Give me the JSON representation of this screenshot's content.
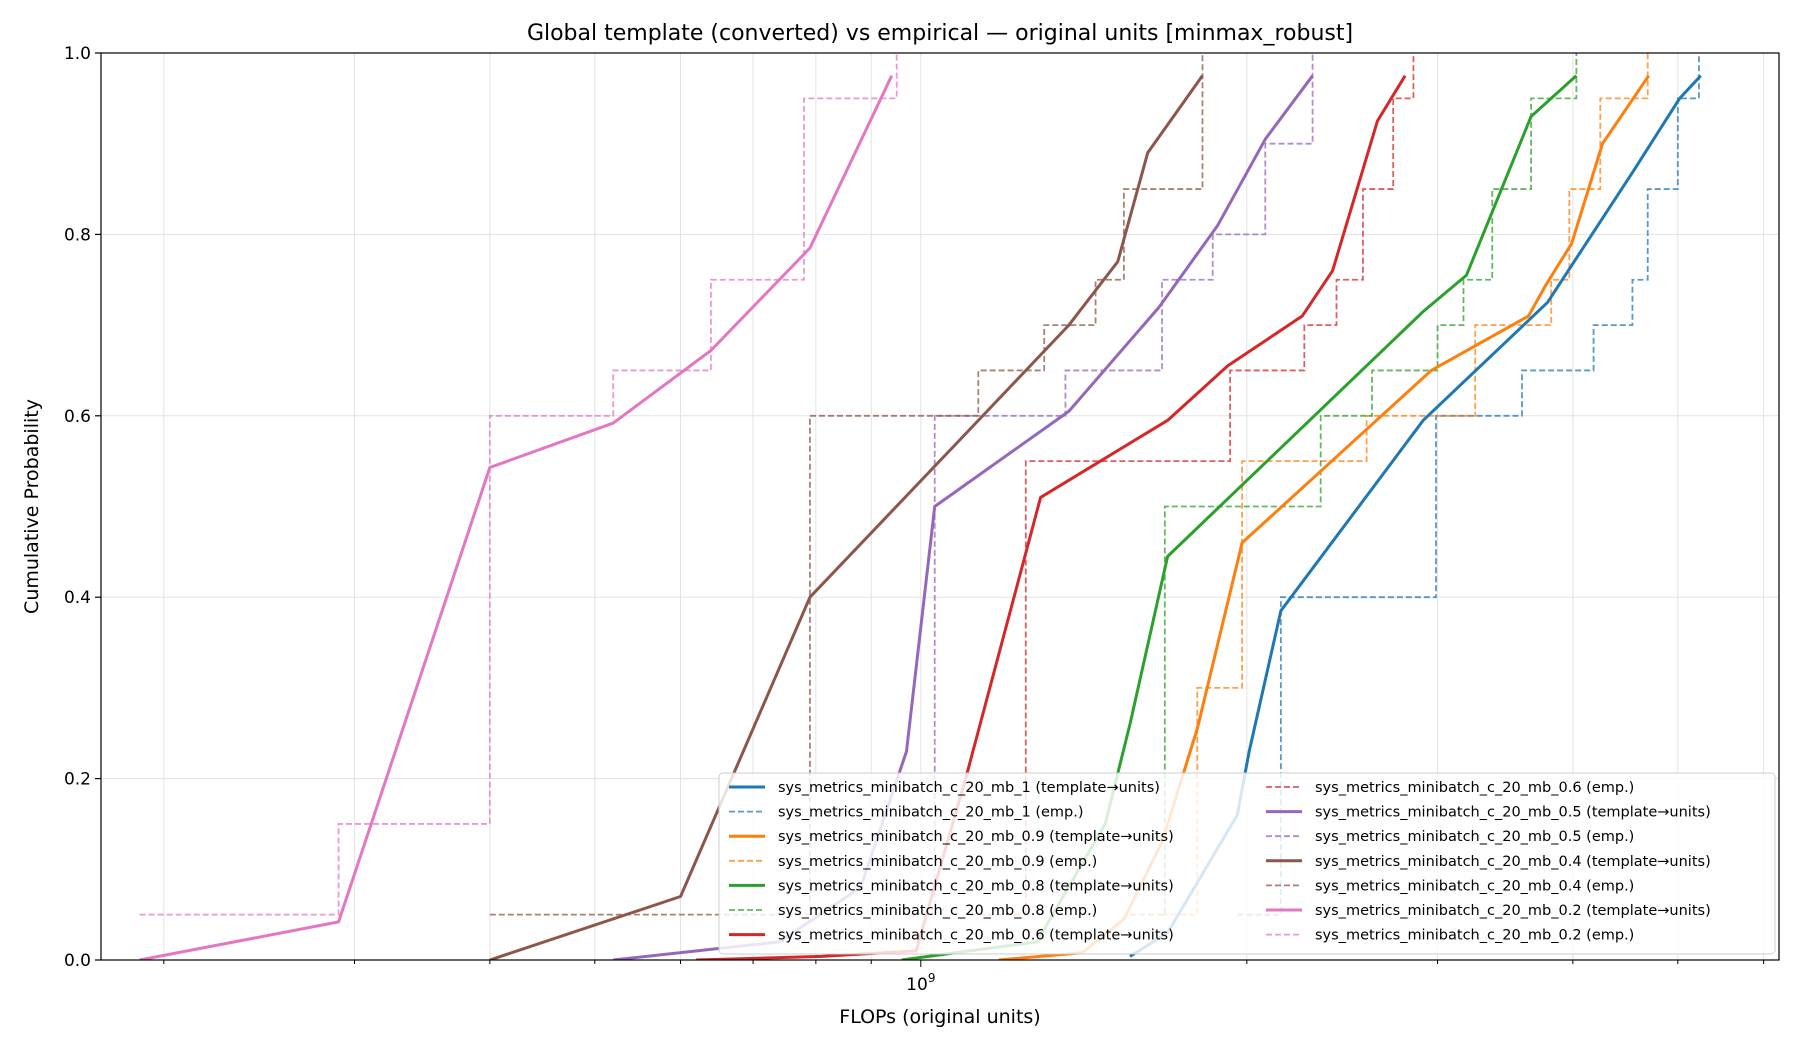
{
  "chart_data": {
    "type": "line",
    "title": "Global template (converted) vs empirical — original units [minmax_robust]",
    "xlabel": "FLOPs (original units)",
    "ylabel": "Cumulative Probability",
    "x_scale": "log",
    "xlim": [
      175000000,
      6200000000
    ],
    "ylim": [
      0,
      1
    ],
    "x_ticks": [
      {
        "value": 1000000000,
        "label": "10^9"
      }
    ],
    "y_ticks": [
      {
        "value": 0.0,
        "label": "0.0"
      },
      {
        "value": 0.2,
        "label": "0.2"
      },
      {
        "value": 0.4,
        "label": "0.4"
      },
      {
        "value": 0.6,
        "label": "0.6"
      },
      {
        "value": 0.8,
        "label": "0.8"
      },
      {
        "value": 1.0,
        "label": "1.0"
      }
    ],
    "grid": true,
    "legend_position": "lower-right",
    "legend_columns": 2,
    "series": [
      {
        "name": "sys_metrics_minibatch_c_20_mb_1 (template→units)",
        "color": "#1f77b4",
        "style": "solid",
        "x": [
          1560000000,
          1690000000,
          1960000000,
          2010000000,
          2150000000,
          2910000000,
          3790000000,
          4550000000,
          5020000000,
          5250000000
        ],
        "y": [
          0.004,
          0.03,
          0.16,
          0.23,
          0.385,
          0.595,
          0.725,
          0.87,
          0.95,
          0.975
        ]
      },
      {
        "name": "sys_metrics_minibatch_c_20_mb_1 (emp.)",
        "color": "#1f77b4",
        "style": "dashed",
        "x": [
          1960000000,
          2150000000,
          2990000000,
          3590000000,
          4180000000,
          4540000000,
          4690000000,
          5000000000,
          5230000000
        ],
        "y": [
          0.05,
          0.4,
          0.6,
          0.65,
          0.7,
          0.75,
          0.85,
          0.95,
          1.0
        ]
      },
      {
        "name": "sys_metrics_minibatch_c_20_mb_0.9 (template→units)",
        "color": "#ff7f0e",
        "style": "solid",
        "x": [
          1180000000,
          1410000000,
          1540000000,
          1670000000,
          1800000000,
          1980000000,
          2960000000,
          3640000000,
          3780000000,
          3990000000,
          4260000000,
          4700000000
        ],
        "y": [
          0.0,
          0.008,
          0.045,
          0.13,
          0.255,
          0.46,
          0.65,
          0.71,
          0.745,
          0.79,
          0.9,
          0.975
        ]
      },
      {
        "name": "sys_metrics_minibatch_c_20_mb_0.9 (emp.)",
        "color": "#ff7f0e",
        "style": "dashed",
        "x": [
          1670000000,
          1800000000,
          1980000000,
          2580000000,
          3250000000,
          3820000000,
          3970000000,
          4240000000,
          4690000000
        ],
        "y": [
          0.05,
          0.3,
          0.55,
          0.6,
          0.7,
          0.75,
          0.85,
          0.95,
          1.0
        ]
      },
      {
        "name": "sys_metrics_minibatch_c_20_mb_0.8 (template→units)",
        "color": "#2ca02c",
        "style": "solid",
        "x": [
          960000000,
          1280000000,
          1480000000,
          1560000000,
          1690000000,
          2910000000,
          3190000000,
          3660000000,
          4030000000
        ],
        "y": [
          0.0,
          0.02,
          0.15,
          0.26,
          0.445,
          0.715,
          0.755,
          0.93,
          0.975
        ]
      },
      {
        "name": "sys_metrics_minibatch_c_20_mb_0.8 (emp.)",
        "color": "#2ca02c",
        "style": "dashed",
        "x": [
          1560000000,
          1680000000,
          2340000000,
          2610000000,
          3000000000,
          3170000000,
          3370000000,
          3660000000,
          4030000000
        ],
        "y": [
          0.05,
          0.5,
          0.6,
          0.65,
          0.7,
          0.75,
          0.85,
          0.95,
          1.0
        ]
      },
      {
        "name": "sys_metrics_minibatch_c_20_mb_0.6 (template→units)",
        "color": "#d62728",
        "style": "solid",
        "x": [
          620000000,
          810000000,
          990000000,
          1100000000,
          1290000000,
          1690000000,
          1920000000,
          2250000000,
          2400000000,
          2640000000,
          2800000000
        ],
        "y": [
          0.0,
          0.004,
          0.01,
          0.2,
          0.51,
          0.595,
          0.655,
          0.71,
          0.76,
          0.925,
          0.975
        ]
      },
      {
        "name": "sys_metrics_minibatch_c_20_mb_0.6 (emp.)",
        "color": "#d62728",
        "style": "dashed",
        "x": [
          1110000000,
          1250000000,
          1930000000,
          2260000000,
          2420000000,
          2560000000,
          2730000000,
          2850000000
        ],
        "y": [
          0.05,
          0.55,
          0.65,
          0.7,
          0.75,
          0.85,
          0.95,
          1.0
        ]
      },
      {
        "name": "sys_metrics_minibatch_c_20_mb_0.5 (template→units)",
        "color": "#9467bd",
        "style": "solid",
        "x": [
          520000000,
          740000000,
          880000000,
          970000000,
          1030000000,
          1370000000,
          1660000000,
          1880000000,
          2080000000,
          2300000000
        ],
        "y": [
          0.0,
          0.02,
          0.08,
          0.23,
          0.5,
          0.605,
          0.72,
          0.81,
          0.905,
          0.975
        ]
      },
      {
        "name": "sys_metrics_minibatch_c_20_mb_0.5 (emp.)",
        "color": "#9467bd",
        "style": "dashed",
        "x": [
          970000000,
          1030000000,
          1360000000,
          1670000000,
          1860000000,
          2080000000,
          2300000000
        ],
        "y": [
          0.05,
          0.6,
          0.65,
          0.75,
          0.8,
          0.9,
          1.0
        ]
      },
      {
        "name": "sys_metrics_minibatch_c_20_mb_0.4 (template→units)",
        "color": "#8c564b",
        "style": "solid",
        "x": [
          400000000,
          600000000,
          790000000,
          1120000000,
          1370000000,
          1520000000,
          1620000000,
          1820000000
        ],
        "y": [
          0.0,
          0.07,
          0.4,
          0.59,
          0.7,
          0.77,
          0.89,
          0.975
        ]
      },
      {
        "name": "sys_metrics_minibatch_c_20_mb_0.4 (emp.)",
        "color": "#8c564b",
        "style": "dashed",
        "x": [
          400000000,
          790000000,
          1130000000,
          1300000000,
          1450000000,
          1540000000,
          1820000000
        ],
        "y": [
          0.05,
          0.6,
          0.65,
          0.7,
          0.75,
          0.85,
          1.0
        ]
      },
      {
        "name": "sys_metrics_minibatch_c_20_mb_0.2 (template→units)",
        "color": "#e377c2",
        "style": "solid",
        "x": [
          190000000,
          290000000,
          400000000,
          520000000,
          640000000,
          790000000,
          940000000
        ],
        "y": [
          0.0,
          0.042,
          0.543,
          0.592,
          0.672,
          0.785,
          0.975
        ]
      },
      {
        "name": "sys_metrics_minibatch_c_20_mb_0.2 (emp.)",
        "color": "#e377c2",
        "style": "dashed",
        "x": [
          190000000,
          290000000,
          400000000,
          520000000,
          640000000,
          780000000,
          950000000
        ],
        "y": [
          0.05,
          0.15,
          0.6,
          0.65,
          0.75,
          0.95,
          1.0
        ]
      }
    ]
  }
}
